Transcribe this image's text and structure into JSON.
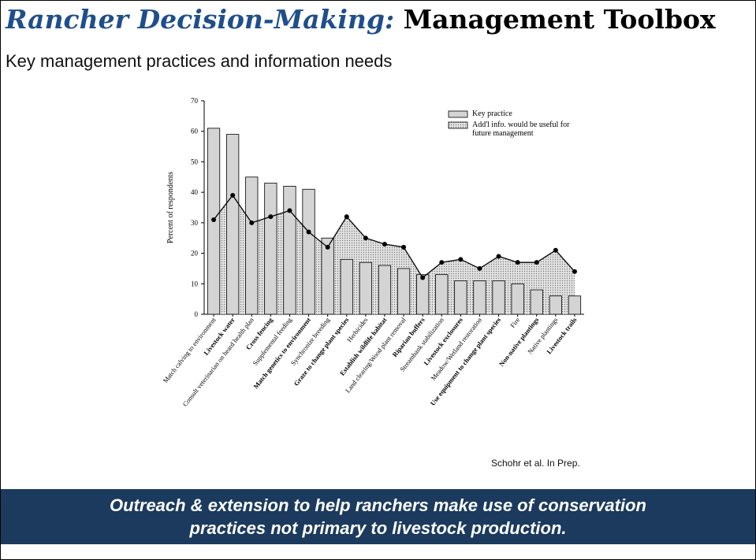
{
  "title_italic": "Rancher Decision-Making:",
  "title_bold": "Management Toolbox",
  "subtitle": "Key management practices and information needs",
  "citation": "Schohr et al. In Prep.",
  "banner": "Outreach & extension to help ranchers make use of conservation practices not primary to livestock production.",
  "chart_data": {
    "type": "bar",
    "ylabel": "Percent of respondents",
    "categories": [
      "Match calving to environment",
      "Livestock water",
      "Consult veterinarian on heard health plan",
      "Cross fencing",
      "Supplemental feeding",
      "Match genetics to environment",
      "Synchronize breeding",
      "Graze to change plant species",
      "Herbicides",
      "Establish wildlife habitat",
      "Land clearing/Wood plant removal",
      "Riparian buffers",
      "Streambank stabilization",
      "Livestock exclosures",
      "Meadow/Wetland restoration",
      "Use equipment to change plant species",
      "Fire",
      "Non-native plantings",
      "Native plantings",
      "Livestock trails"
    ],
    "series": [
      {
        "name": "Key practice",
        "type": "bar",
        "color": "#d4d4d4",
        "values": [
          61,
          59,
          45,
          43,
          42,
          41,
          25,
          18,
          17,
          16,
          15,
          13,
          13,
          11,
          11,
          11,
          10,
          8,
          6,
          6
        ]
      },
      {
        "name": "Add'l info. would be useful for future management",
        "type": "line",
        "color": "#000000",
        "values": [
          31,
          39,
          30,
          32,
          34,
          27,
          22,
          32,
          25,
          23,
          22,
          12,
          17,
          18,
          15,
          19,
          17,
          17,
          21,
          14
        ]
      }
    ],
    "ylim": [
      0,
      70
    ],
    "yticks": [
      0,
      10,
      20,
      30,
      40,
      50,
      60,
      70
    ],
    "legend": "upper right"
  }
}
